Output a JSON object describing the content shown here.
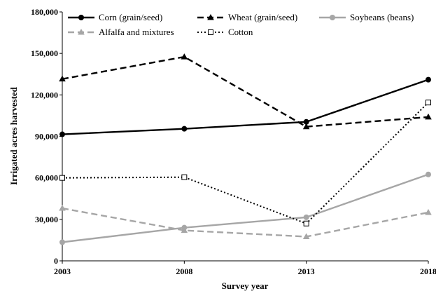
{
  "chart_data": {
    "type": "line",
    "title": "",
    "xlabel": "Survey year",
    "ylabel": "Irrigated acres harvested",
    "categories": [
      "2003",
      "2008",
      "2013",
      "2018"
    ],
    "ylim": [
      0,
      180000
    ],
    "yticks": [
      0,
      30000,
      60000,
      90000,
      120000,
      150000,
      180000
    ],
    "ytick_labels": [
      "0",
      "30,000",
      "60,000",
      "90,000",
      "120,000",
      "150,000",
      "180,000"
    ],
    "grid": false,
    "legend_position": "top",
    "series": [
      {
        "name": "Corn (grain/seed)",
        "values": [
          91500,
          95500,
          100500,
          131000
        ],
        "color": "#000000",
        "dash": "solid",
        "marker": "circle"
      },
      {
        "name": "Wheat (grain/seed)",
        "values": [
          131500,
          147500,
          97000,
          104000
        ],
        "color": "#000000",
        "dash": "dashed",
        "marker": "triangle"
      },
      {
        "name": "Soybeans (beans)",
        "values": [
          13500,
          24000,
          31500,
          62500
        ],
        "color": "#a6a6a6",
        "dash": "solid",
        "marker": "circle"
      },
      {
        "name": "Alfalfa and mixtures",
        "values": [
          38000,
          22000,
          17500,
          35000
        ],
        "color": "#a6a6a6",
        "dash": "dashed",
        "marker": "triangle"
      },
      {
        "name": "Cotton",
        "values": [
          60000,
          60500,
          27000,
          114500
        ],
        "color": "#000000",
        "dash": "dotted",
        "marker": "square-open"
      }
    ]
  }
}
